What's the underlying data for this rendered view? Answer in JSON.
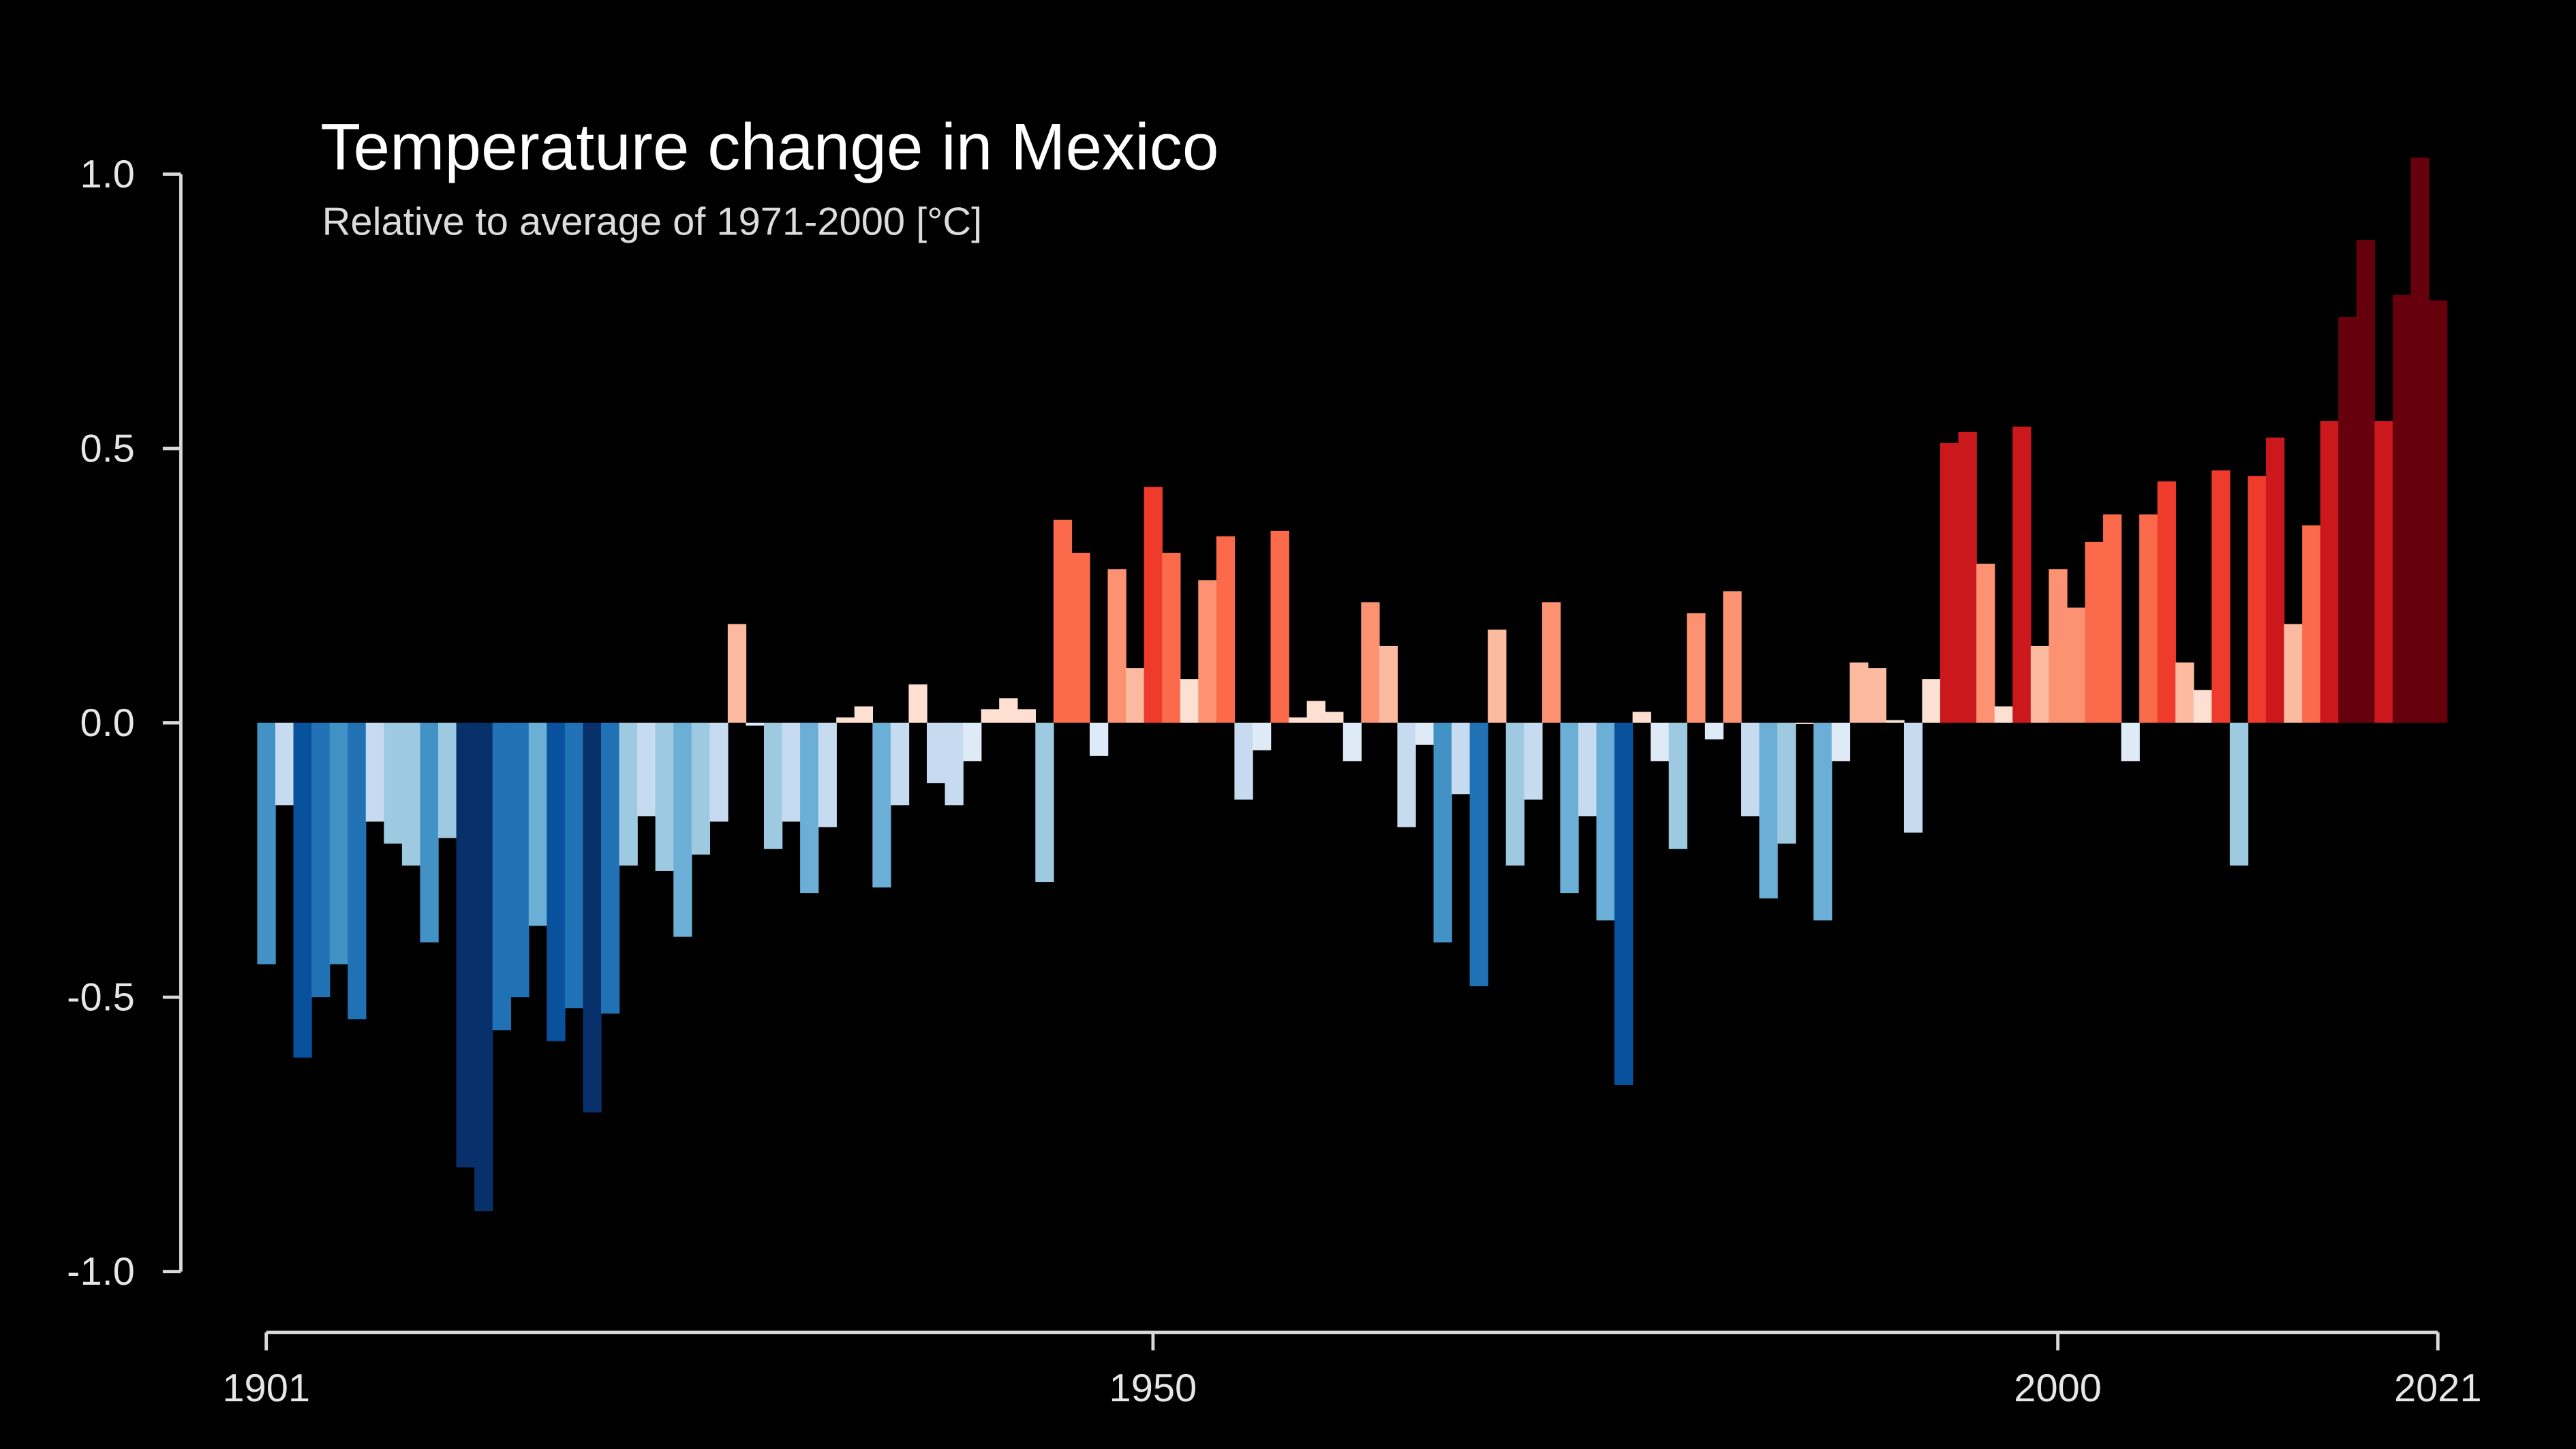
{
  "chart_data": {
    "type": "bar",
    "title": "Temperature change in Mexico",
    "subtitle": "Relative to average of 1971-2000  [°C]",
    "xlabel": "",
    "ylabel": "",
    "xlim": [
      1901,
      2021
    ],
    "ylim": [
      -1.0,
      1.0
    ],
    "grid": false,
    "x_ticks": [
      1901,
      1950,
      2000,
      2021
    ],
    "x_tick_labels": [
      "1901",
      "1950",
      "2000",
      "2021"
    ],
    "y_ticks": [
      1.0,
      0.5,
      0.0,
      -0.5,
      -1.0
    ],
    "y_tick_labels": [
      "1.0",
      "0.5",
      "0.0",
      "-0.5",
      "-1.0"
    ],
    "start_year": 1901,
    "values": [
      -0.44,
      -0.15,
      -0.61,
      -0.5,
      -0.44,
      -0.54,
      -0.18,
      -0.22,
      -0.26,
      -0.4,
      -0.21,
      -0.81,
      -0.89,
      -0.56,
      -0.5,
      -0.37,
      -0.58,
      -0.52,
      -0.71,
      -0.53,
      -0.26,
      -0.17,
      -0.27,
      -0.39,
      -0.24,
      -0.18,
      0.18,
      -0.005,
      -0.23,
      -0.18,
      -0.31,
      -0.19,
      0.01,
      0.03,
      -0.3,
      -0.15,
      0.07,
      -0.11,
      -0.15,
      -0.07,
      0.025,
      0.045,
      0.025,
      -0.29,
      0.37,
      0.31,
      -0.06,
      0.28,
      0.1,
      0.43,
      0.31,
      0.08,
      0.26,
      0.34,
      -0.14,
      -0.05,
      0.35,
      0.01,
      0.04,
      0.02,
      -0.07,
      0.22,
      0.14,
      -0.19,
      -0.04,
      -0.4,
      -0.13,
      -0.48,
      0.17,
      -0.26,
      -0.14,
      0.22,
      -0.31,
      -0.17,
      -0.36,
      -0.66,
      0.02,
      -0.07,
      -0.23,
      0.2,
      -0.03,
      0.24,
      -0.17,
      -0.32,
      -0.22,
      0.0,
      -0.36,
      -0.07,
      0.11,
      0.1,
      0.005,
      -0.2,
      0.08,
      0.51,
      0.53,
      0.29,
      0.03,
      0.54,
      0.14,
      0.28,
      0.21,
      0.33,
      0.38,
      -0.07,
      0.38,
      0.44,
      0.11,
      0.06,
      0.46,
      -0.26,
      0.45,
      0.52,
      0.18,
      0.36,
      0.55,
      0.74,
      0.88,
      0.55,
      0.78,
      1.03,
      0.77
    ],
    "color_scale": {
      "negative": [
        {
          "below": -0.68,
          "color": "#08306b"
        },
        {
          "below": -0.57,
          "color": "#08519c"
        },
        {
          "below": -0.46,
          "color": "#2171b5"
        },
        {
          "below": -0.395,
          "color": "#4292c6"
        },
        {
          "below": -0.29,
          "color": "#6baed6"
        },
        {
          "below": -0.2,
          "color": "#9ecae1"
        },
        {
          "below": -0.1,
          "color": "#c6dbef"
        },
        {
          "below": 0.0,
          "color": "#deebf7"
        }
      ],
      "positive": [
        {
          "below": 0.09,
          "color": "#fee0d2"
        },
        {
          "below": 0.19,
          "color": "#fcbba1"
        },
        {
          "below": 0.3,
          "color": "#fc9272"
        },
        {
          "below": 0.4,
          "color": "#fb6a4a"
        },
        {
          "below": 0.48,
          "color": "#ef3b2c"
        },
        {
          "below": 0.65,
          "color": "#cb181d"
        },
        {
          "below": 99,
          "color": "#67000d"
        }
      ]
    },
    "background_color": "#000000",
    "axis_color": "#d9d9d9"
  }
}
